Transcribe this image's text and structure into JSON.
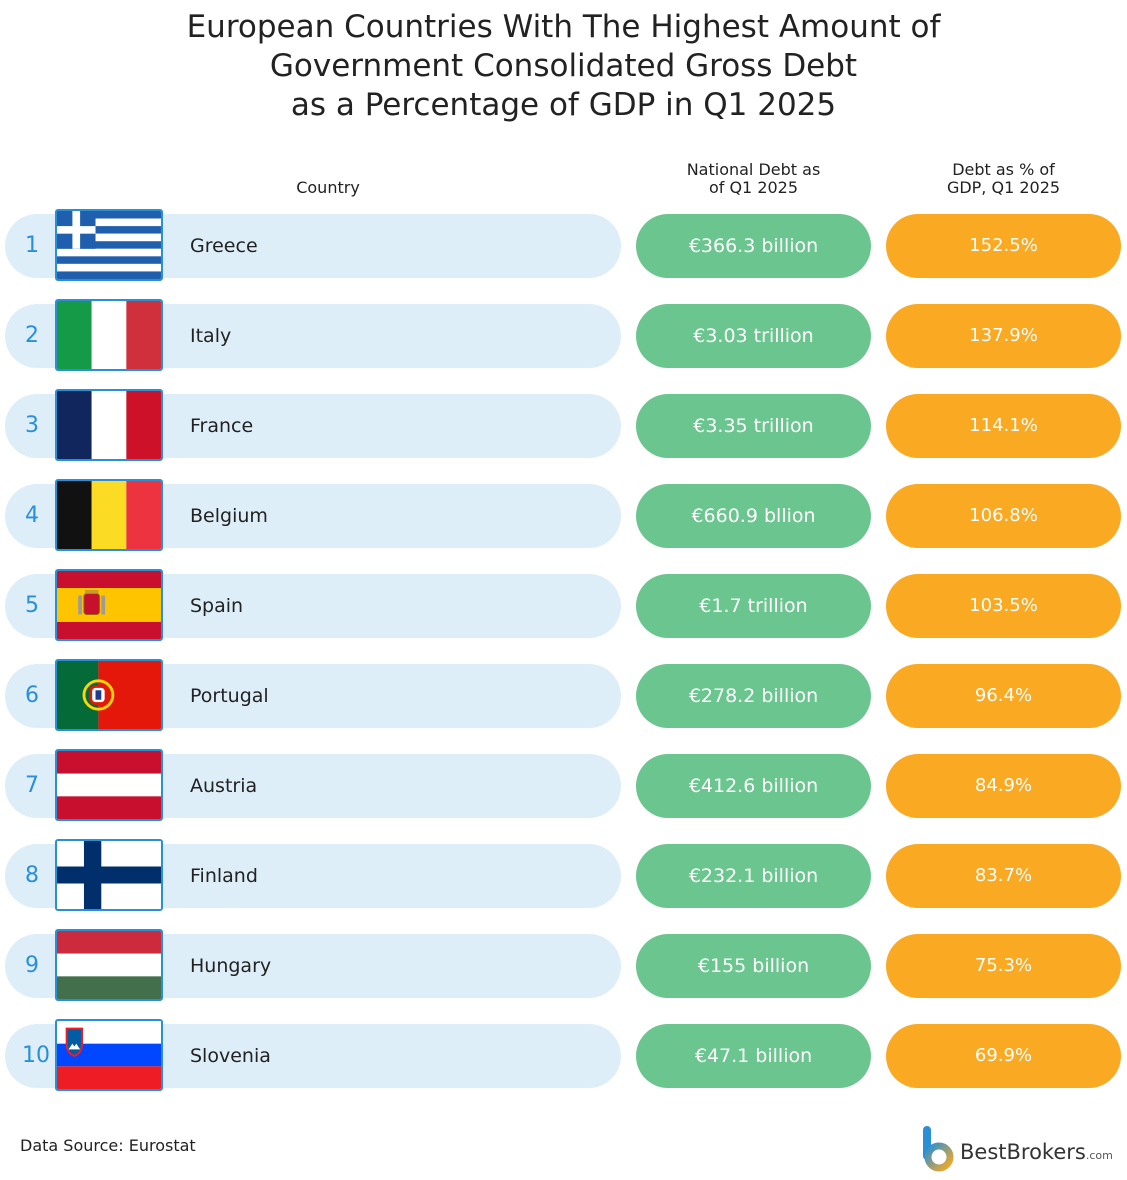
{
  "title_lines": [
    "European Countries With The Highest Amount of",
    "Government Consolidated Gross Debt",
    "as a Percentage of GDP in Q1 2025"
  ],
  "headers": {
    "country": "Country",
    "debt_line1": "National Debt as",
    "debt_line2": "of Q1 2025",
    "pct_line1": "Debt as % of",
    "pct_line2": "GDP, Q1 2025"
  },
  "chart_data": {
    "type": "table",
    "title": "European Countries With The Highest Amount of Government Consolidated Gross Debt as a Percentage of GDP in Q1 2025",
    "columns": [
      "Country",
      "National Debt as of Q1 2025",
      "Debt as % of GDP, Q1 2025"
    ],
    "rows": [
      {
        "rank": "1",
        "country": "Greece",
        "flag": "greece-flag",
        "debt": "€366.3 billion",
        "pct": "152.5%",
        "pct_value": 152.5
      },
      {
        "rank": "2",
        "country": "Italy",
        "flag": "italy-flag",
        "debt": "€3.03 trillion",
        "pct": "137.9%",
        "pct_value": 137.9
      },
      {
        "rank": "3",
        "country": "France",
        "flag": "france-flag",
        "debt": "€3.35 trillion",
        "pct": "114.1%",
        "pct_value": 114.1
      },
      {
        "rank": "4",
        "country": "Belgium",
        "flag": "belgium-flag",
        "debt": "€660.9 bllion",
        "pct": "106.8%",
        "pct_value": 106.8
      },
      {
        "rank": "5",
        "country": "Spain",
        "flag": "spain-flag",
        "debt": "€1.7 trillion",
        "pct": "103.5%",
        "pct_value": 103.5
      },
      {
        "rank": "6",
        "country": "Portugal",
        "flag": "portugal-flag",
        "debt": "€278.2 billion",
        "pct": "96.4%",
        "pct_value": 96.4
      },
      {
        "rank": "7",
        "country": "Austria",
        "flag": "austria-flag",
        "debt": "€412.6 billion",
        "pct": "84.9%",
        "pct_value": 84.9
      },
      {
        "rank": "8",
        "country": "Finland",
        "flag": "finland-flag",
        "debt": "€232.1 billion",
        "pct": "83.7%",
        "pct_value": 83.7
      },
      {
        "rank": "9",
        "country": "Hungary",
        "flag": "hungary-flag",
        "debt": "€155 billion",
        "pct": "75.3%",
        "pct_value": 75.3
      },
      {
        "rank": "10",
        "country": "Slovenia",
        "flag": "slovenia-flag",
        "debt": "€47.1 billion",
        "pct": "69.9%",
        "pct_value": 69.9
      }
    ]
  },
  "footer": {
    "source": "Data Source: Eurostat",
    "brand": "BestBrokers",
    "brand_suffix": ".com"
  },
  "colors": {
    "row_background": "#ddeef9",
    "debt_pill": "#6bc58f",
    "pct_pill": "#faa922",
    "rank_text": "#2a8fd6",
    "flag_border": "#2a8fd6"
  }
}
